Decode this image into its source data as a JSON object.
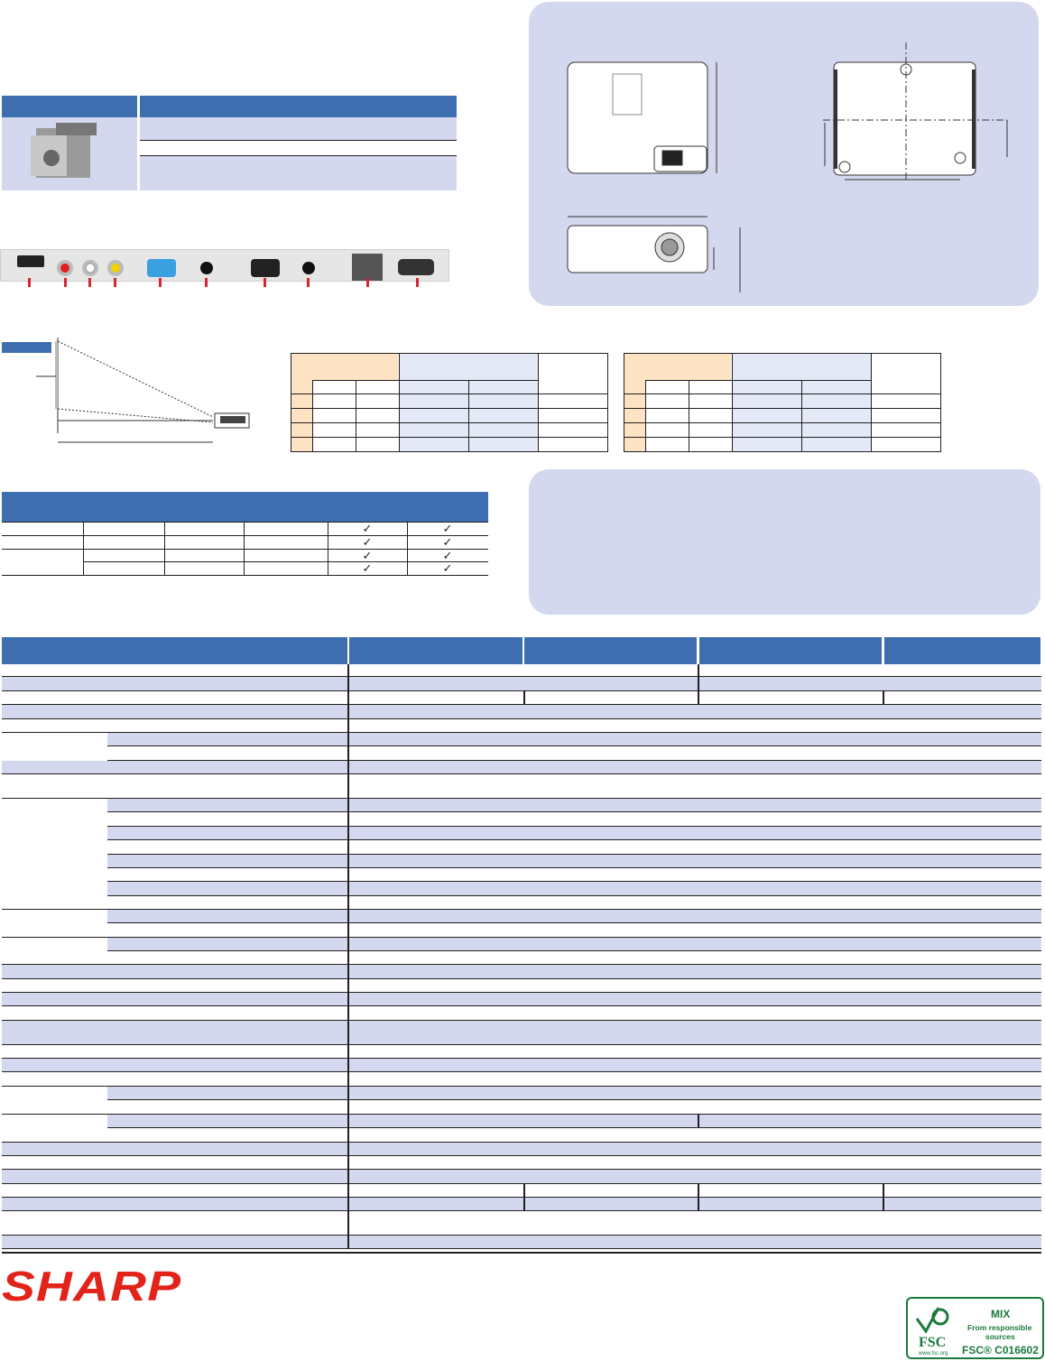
{
  "colors": {
    "header_blue": "#3d6eb0",
    "row_shade": "#d4d8ee",
    "orange_cell": "#fde2c3",
    "light_blue_cell": "#e3e9f7",
    "brand_red": "#e2231a",
    "fsc_green": "#1a7a3c"
  },
  "brand": {
    "logo_text": "SHARP"
  },
  "fsc": {
    "mix": "MIX",
    "from": "From responsible",
    "sources": "sources",
    "code": "FSC® C016602",
    "logo": "FSC",
    "url": "www.fsc.org"
  },
  "compatibility": {
    "checks": [
      "✓",
      "✓",
      "✓",
      "✓",
      "✓",
      "✓",
      "✓",
      "✓"
    ]
  }
}
